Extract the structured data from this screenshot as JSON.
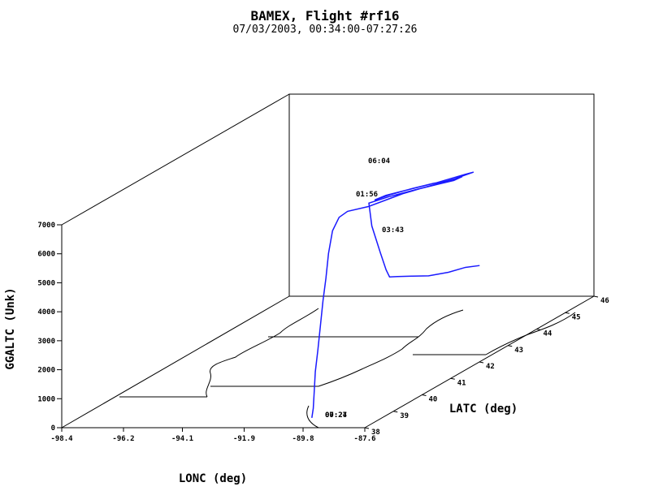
{
  "chart_data": {
    "type": "line",
    "projection": "3d",
    "title": "BAMEX, Flight #rf16",
    "subtitle": "07/03/2003, 00:34:00-07:27:26",
    "xlabel": "LONC (deg)",
    "ylabel": "LATC (deg)",
    "zlabel": "GGALTC (Unk)",
    "xlim": [
      -98.4,
      -87.6
    ],
    "ylim": [
      38,
      46
    ],
    "zlim": [
      0,
      7000
    ],
    "x_ticks": [
      "-98.4",
      "-96.2",
      "-94.1",
      "-91.9",
      "-89.8",
      "-87.6"
    ],
    "y_ticks": [
      "38",
      "39",
      "40",
      "41",
      "42",
      "43",
      "44",
      "45",
      "46"
    ],
    "z_ticks": [
      "0",
      "1000",
      "2000",
      "3000",
      "4000",
      "5000",
      "6000",
      "7000"
    ],
    "series_color": "#1a1aff",
    "series": [
      {
        "values": [
          [
            -90.1,
            38.6,
            0
          ],
          [
            -90.1,
            38.65,
            300
          ],
          [
            -90.12,
            38.7,
            800
          ],
          [
            -90.13,
            38.75,
            1500
          ],
          [
            -90.14,
            38.85,
            2200
          ],
          [
            -90.15,
            38.95,
            3000
          ],
          [
            -90.16,
            39.05,
            3800
          ],
          [
            -90.16,
            39.15,
            4500
          ],
          [
            -90.17,
            39.25,
            5300
          ],
          [
            -90.18,
            39.4,
            6000
          ],
          [
            -90.15,
            39.6,
            6350
          ],
          [
            -89.95,
            39.7,
            6500
          ],
          [
            -89.5,
            40.0,
            6500
          ],
          [
            -89.2,
            40.3,
            6550
          ],
          [
            -88.9,
            40.6,
            6600
          ],
          [
            -88.6,
            40.9,
            6600
          ],
          [
            -88.2,
            41.2,
            6600
          ],
          [
            -87.9,
            41.4,
            6600
          ],
          [
            -87.75,
            41.55,
            6650
          ],
          [
            -88.0,
            41.4,
            6600
          ],
          [
            -88.4,
            41.2,
            6620
          ],
          [
            -88.9,
            40.9,
            6600
          ],
          [
            -89.3,
            40.6,
            6580
          ],
          [
            -89.6,
            40.3,
            6550
          ],
          [
            -89.4,
            40.5,
            6600
          ],
          [
            -88.8,
            40.9,
            6620
          ],
          [
            -88.3,
            41.2,
            6640
          ],
          [
            -87.7,
            41.6,
            6700
          ],
          [
            -87.5,
            41.7,
            6720
          ],
          [
            -87.9,
            41.4,
            6650
          ],
          [
            -88.5,
            41.0,
            6600
          ],
          [
            -89.3,
            40.5,
            6550
          ],
          [
            -89.7,
            40.2,
            6500
          ],
          [
            -89.8,
            40.4,
            5600
          ],
          [
            -89.8,
            40.7,
            4500
          ],
          [
            -89.8,
            40.9,
            3800
          ],
          [
            -89.78,
            41.0,
            3500
          ],
          [
            -89.7,
            41.2,
            3400
          ],
          [
            -89.4,
            41.4,
            3300
          ],
          [
            -89.0,
            41.6,
            3200
          ],
          [
            -88.6,
            41.9,
            3150
          ],
          [
            -88.3,
            42.2,
            3150
          ],
          [
            -88.0,
            42.4,
            3100
          ]
        ]
      }
    ],
    "time_labels": [
      "06:04",
      "01:56",
      "03:43",
      "00:27",
      "07:24"
    ],
    "grid": false
  }
}
